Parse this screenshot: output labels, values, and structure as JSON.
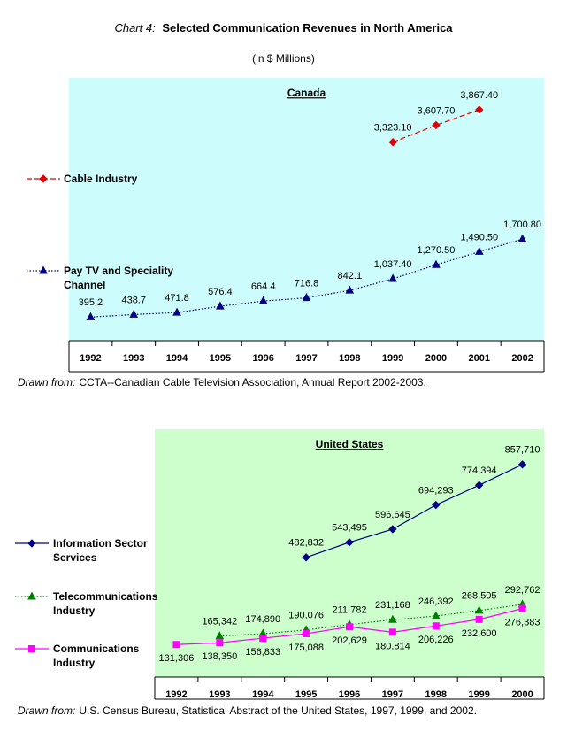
{
  "header": {
    "chart_label": "Chart 4:",
    "title": "Selected Communication Revenues in North America",
    "subtitle": "(in $ Millions)"
  },
  "chart_data": [
    {
      "type": "line",
      "title": "Canada",
      "background": "#ccfcfc",
      "categories": [
        "1992",
        "1993",
        "1994",
        "1995",
        "1996",
        "1997",
        "1998",
        "1999",
        "2000",
        "2001",
        "2002"
      ],
      "ylim": [
        0,
        4400
      ],
      "series": [
        {
          "name": "Cable Industry",
          "color": "#e00000",
          "marker": "diamond",
          "dash": "dashed",
          "label_position": "above",
          "values": [
            null,
            null,
            null,
            null,
            null,
            null,
            null,
            3323.1,
            3607.7,
            3867.4,
            null
          ],
          "value_labels": [
            null,
            null,
            null,
            null,
            null,
            null,
            null,
            "3,323.10",
            "3,607.70",
            "3,867.40",
            null
          ]
        },
        {
          "name": "Pay TV and Speciality Channel",
          "color": "#000080",
          "marker": "triangle",
          "dash": "dotted",
          "label_position": "above",
          "values": [
            395.2,
            438.7,
            471.8,
            576.4,
            664.4,
            716.8,
            842.1,
            1037.4,
            1270.5,
            1490.5,
            1700.8
          ],
          "value_labels": [
            "395.2",
            "438.7",
            "471.8",
            "576.4",
            "664.4",
            "716.8",
            "842.1",
            "1,037.40",
            "1,270.50",
            "1,490.50",
            "1,700.80"
          ]
        }
      ],
      "source_label": "Drawn from:",
      "source": "CCTA--Canadian Cable Television Association, Annual Report 2002-2003."
    },
    {
      "type": "line",
      "title": "United States",
      "background": "#ccffcc",
      "categories": [
        "1992",
        "1993",
        "1994",
        "1995",
        "1996",
        "1997",
        "1998",
        "1999",
        "2000"
      ],
      "ylim": [
        0,
        1000000
      ],
      "series": [
        {
          "name": "Information Sector Services",
          "color": "#000080",
          "marker": "diamond",
          "dash": "solid",
          "label_position": "above",
          "values": [
            null,
            null,
            null,
            482832,
            543495,
            596645,
            694293,
            774394,
            857710
          ],
          "value_labels": [
            null,
            null,
            null,
            "482,832",
            "543,495",
            "596,645",
            "694,293",
            "774,394",
            "857,710"
          ]
        },
        {
          "name": "Telecommunications Industry",
          "color": "#008000",
          "marker": "triangle",
          "dash": "dotted",
          "label_position": "above",
          "values": [
            null,
            165342,
            174890,
            190076,
            211782,
            231168,
            246392,
            268505,
            292762
          ],
          "value_labels": [
            null,
            "165,342",
            "174,890",
            "190,076",
            "211,782",
            "231,168",
            "246,392",
            "268,505",
            "292,762"
          ]
        },
        {
          "name": "Communications Industry",
          "color": "#ff00ff",
          "marker": "square",
          "dash": "solid",
          "label_position": "below",
          "values": [
            131306,
            138350,
            156833,
            175088,
            202629,
            180814,
            206226,
            232600,
            276383
          ],
          "value_labels": [
            "131,306",
            "138,350",
            "156,833",
            "175,088",
            "202,629",
            "180,814",
            "206,226",
            "232,600",
            "276,383"
          ]
        }
      ],
      "source_label": "Drawn from:",
      "source": "U.S. Census Bureau, Statistical Abstract of the United States, 1997, 1999, and 2002."
    }
  ]
}
